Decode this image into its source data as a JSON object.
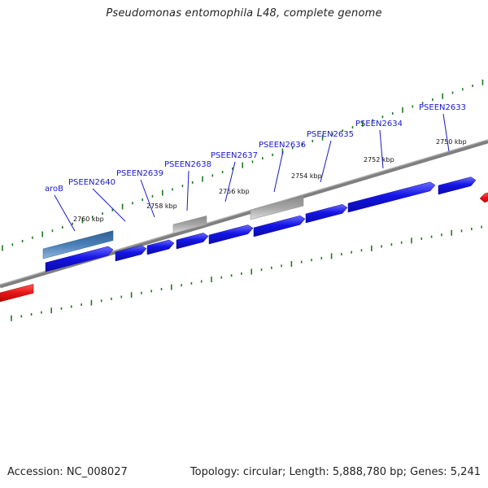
{
  "title": "Pseudomonas entomophila L48, complete genome",
  "footer": {
    "accession": "Accession: NC_008027",
    "summary": "Topology: circular; Length: 5,888,780 bp; Genes: 5,241"
  },
  "colors": {
    "backbone": "#7f7f7f",
    "cds": "#1414e6",
    "gene_highlight": "#4a7fb8",
    "pseudo": "#a6a6a6",
    "rna": "#e61414",
    "tick": "#1f7a1f",
    "gene_label": "#1a1acc"
  },
  "gene_labels": [
    "aroB",
    "PSEEN2640",
    "PSEEN2639",
    "PSEEN2638",
    "PSEEN2637",
    "PSEEN2636",
    "PSEEN2635",
    "PSEEN2634",
    "PSEEN2633"
  ],
  "tick_labels": [
    "2760 kbp",
    "2758 kbp",
    "2756 kbp",
    "2754 kbp",
    "2752 kbp",
    "2750 kbp"
  ]
}
